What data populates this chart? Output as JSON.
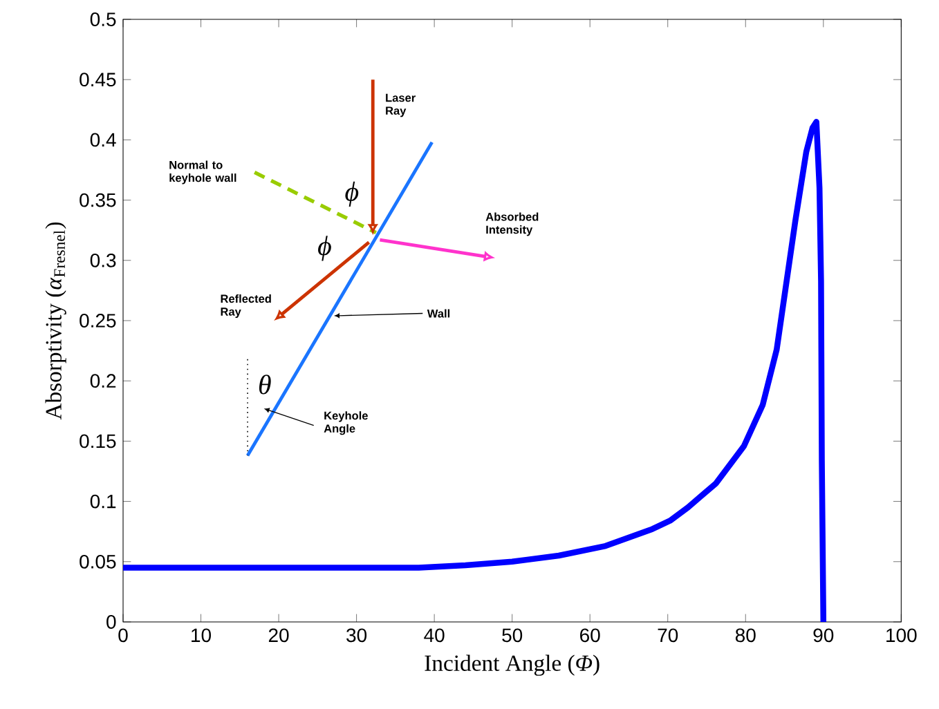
{
  "chart_data": {
    "type": "line",
    "xlabel": "Incident Angle (*Φ*)",
    "ylabel": "Absorptivity (*α*$_{Fresnel}$)",
    "x": [
      0,
      10,
      20,
      30,
      38,
      44,
      50,
      56,
      62,
      68,
      70.3,
      72.6,
      76.2,
      79.8,
      82.2,
      84,
      85.1,
      86.4,
      87.8,
      88.6,
      89.1,
      89.5,
      89.7,
      89.8,
      90
    ],
    "series": [
      {
        "color": "#0000ff",
        "values": [
          0.045,
          0.045,
          0.045,
          0.045,
          0.045,
          0.047,
          0.05,
          0.055,
          0.063,
          0.077,
          0.084,
          0.095,
          0.115,
          0.146,
          0.18,
          0.226,
          0.275,
          0.333,
          0.39,
          0.41,
          0.415,
          0.36,
          0.283,
          0.134,
          0
        ]
      }
    ],
    "xlim": [
      0,
      100
    ],
    "ylim": [
      0,
      0.5
    ],
    "xticks": [
      0,
      10,
      20,
      30,
      40,
      50,
      60,
      70,
      80,
      90,
      100
    ],
    "yticks": [
      0,
      0.05,
      0.1,
      0.15,
      0.2,
      0.25,
      0.3,
      0.35,
      0.4,
      0.45,
      0.5
    ],
    "grid": false,
    "marker": "none",
    "line_style": "solid",
    "annotations": [
      "Laser Ray",
      "Normal to keyhole wall",
      "Absorbed Intensity",
      "Reflected Ray",
      "Wall",
      "Keyhole Angle",
      "ϕ",
      "ϕ",
      "θ"
    ]
  }
}
